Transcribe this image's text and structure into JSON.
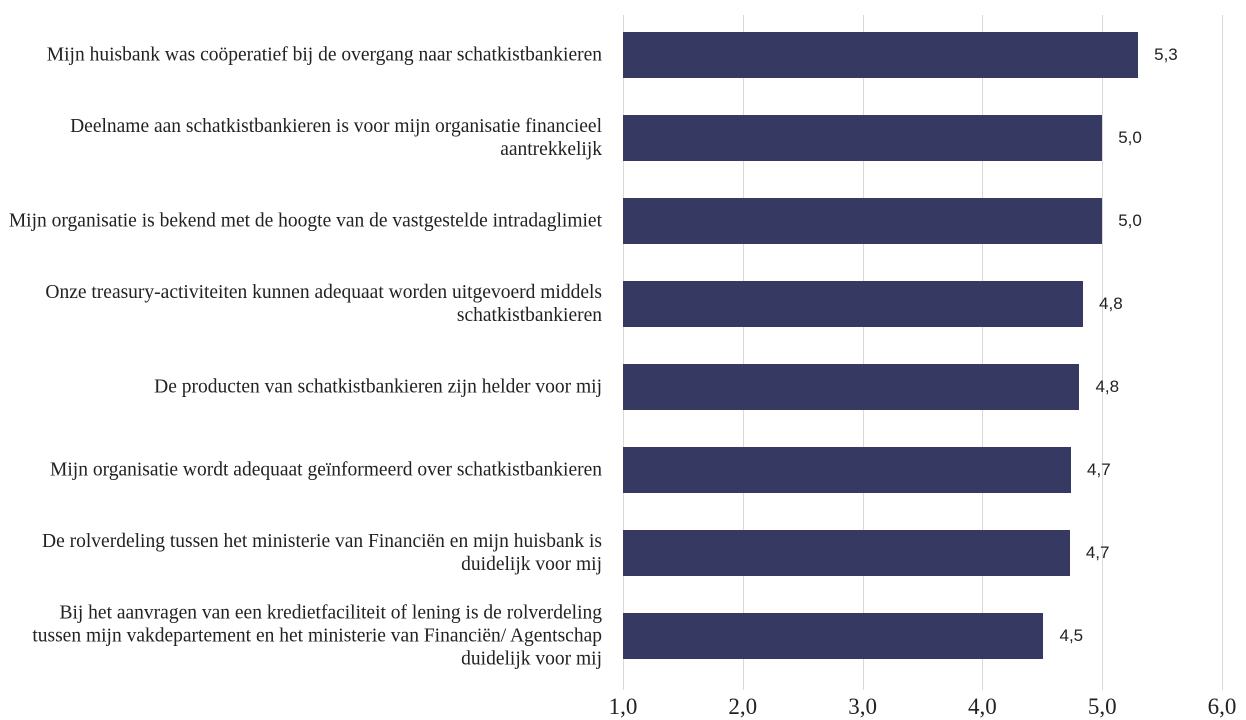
{
  "chart_data": {
    "type": "barh",
    "categories": [
      "Mijn huisbank was coöperatief bij de overgang naar schatkistbankieren",
      "Deelname aan schatkistbankieren is voor mijn organisatie financieel aantrekkelijk",
      "Mijn organisatie is bekend met de hoogte van de vastgestelde intradaglimiet",
      "Onze treasury-activiteiten kunnen adequaat worden uitgevoerd middels schatkistbankieren",
      "De producten van schatkistbankieren zijn helder voor mij",
      "Mijn organisatie wordt adequaat geïnformeerd over schatkistbankieren",
      "De rolverdeling tussen het ministerie van Financiën en mijn huisbank is duidelijk voor mij",
      "Bij het aanvragen van een kredietfaciliteit of lening is de rolverdeling tussen mijn vakdepartement en het ministerie van Financiën/ Agentschap duidelijk voor mij"
    ],
    "values": [
      5.3,
      5.0,
      5.0,
      4.84,
      4.81,
      4.74,
      4.73,
      4.51
    ],
    "value_labels": [
      "5,3",
      "5,0",
      "5,0",
      "4,8",
      "4,8",
      "4,7",
      "4,7",
      "4,5"
    ],
    "color": "#363a63",
    "xlim": [
      1,
      6
    ],
    "xticks": [
      {
        "value": 1,
        "label": "1,0"
      },
      {
        "value": 2,
        "label": "2,0"
      },
      {
        "value": 3,
        "label": "3,0"
      },
      {
        "value": 4,
        "label": "4,0"
      },
      {
        "value": 5,
        "label": "5,0"
      },
      {
        "value": 6,
        "label": "6,0"
      }
    ],
    "grid": true
  }
}
